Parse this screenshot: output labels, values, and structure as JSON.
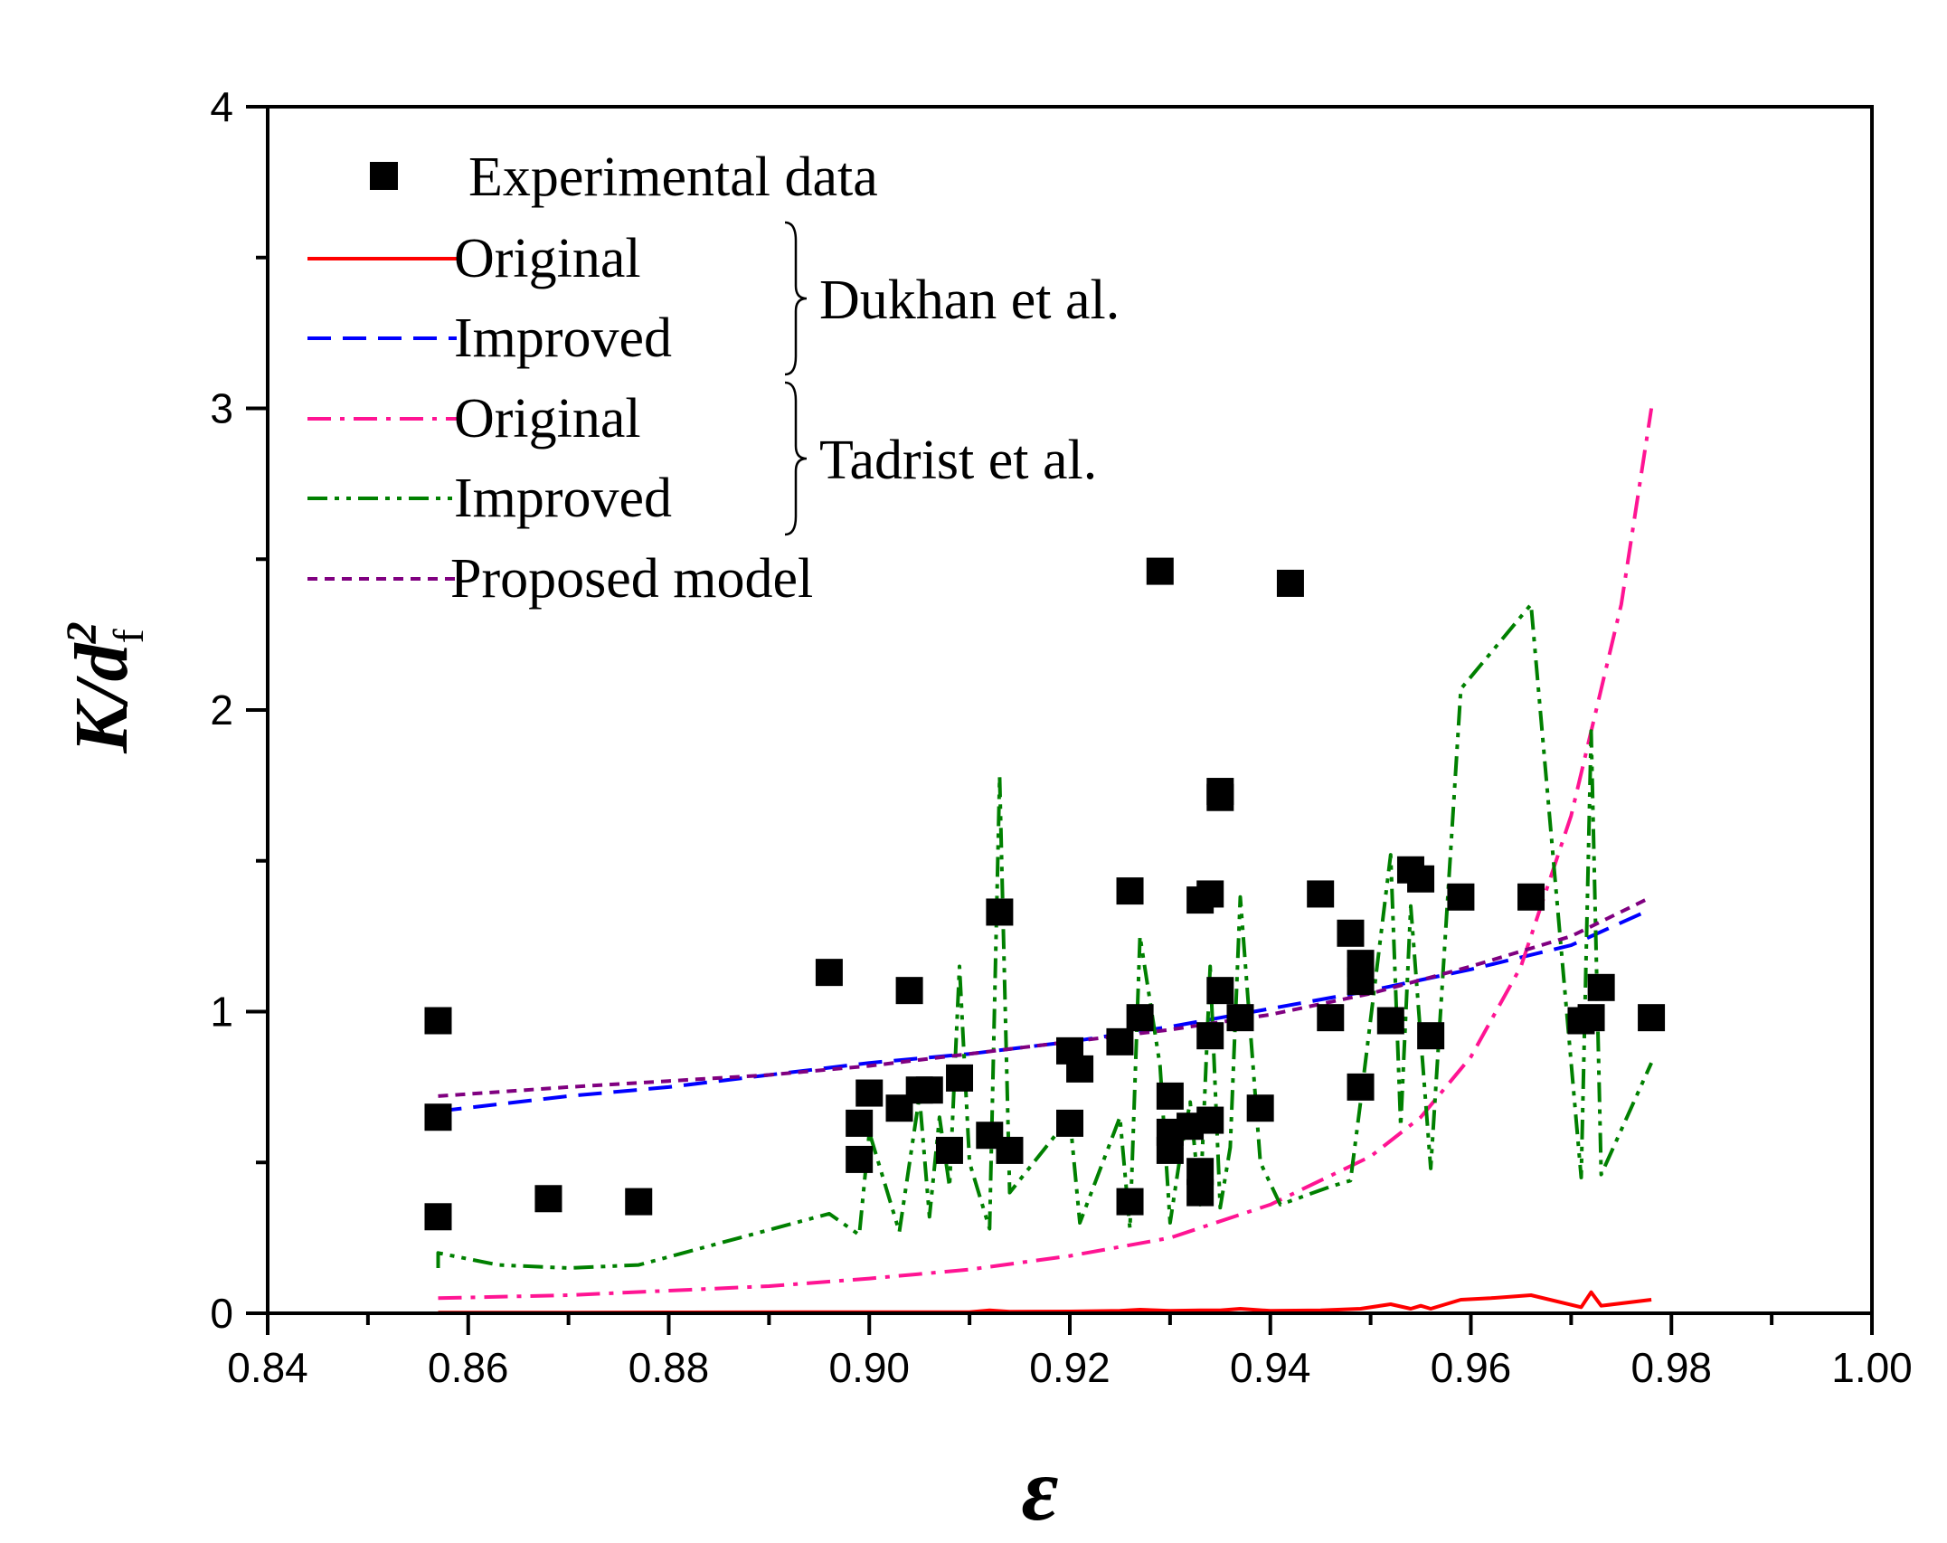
{
  "chart_data": {
    "type": "scatter",
    "title": "",
    "xlabel": "ε",
    "ylabel": {
      "main": "K/d",
      "sup": "2",
      "sub": "f"
    },
    "xlim": [
      0.84,
      1.0
    ],
    "ylim": [
      0,
      4
    ],
    "xticks": [
      "0.84",
      "0.86",
      "0.88",
      "0.90",
      "0.92",
      "0.94",
      "0.96",
      "0.98",
      "1.00"
    ],
    "yticks": [
      "0",
      "1",
      "2",
      "3",
      "4"
    ],
    "grid": false,
    "legend": {
      "placement": "top-left",
      "items": [
        {
          "label": "Experimental data",
          "style": "square",
          "color": "#000000"
        },
        {
          "label": "Original",
          "style": "solid",
          "color": "#ff0000"
        },
        {
          "label": "Improved",
          "style": "dash",
          "color": "#0000ff"
        },
        {
          "label": "Original",
          "style": "dashdot",
          "color": "#ff1493"
        },
        {
          "label": "Improved",
          "style": "dashdotdot",
          "color": "#008000"
        },
        {
          "label": "Proposed model",
          "style": "shortdash",
          "color": "#800080"
        }
      ],
      "groups": [
        {
          "label": "Dukhan et al.",
          "items": [
            1,
            2
          ]
        },
        {
          "label": "Tadrist et al.",
          "items": [
            3,
            4
          ]
        }
      ]
    },
    "series": [
      {
        "name": "Experimental data",
        "style": "square",
        "color": "#000000",
        "points": [
          [
            0.857,
            0.97
          ],
          [
            0.857,
            0.65
          ],
          [
            0.857,
            0.32
          ],
          [
            0.868,
            0.38
          ],
          [
            0.877,
            0.37
          ],
          [
            0.896,
            1.13
          ],
          [
            0.899,
            0.63
          ],
          [
            0.899,
            0.51
          ],
          [
            0.9,
            0.73
          ],
          [
            0.903,
            0.68
          ],
          [
            0.904,
            1.07
          ],
          [
            0.905,
            0.74
          ],
          [
            0.906,
            0.74
          ],
          [
            0.908,
            0.54
          ],
          [
            0.909,
            0.78
          ],
          [
            0.912,
            0.59
          ],
          [
            0.913,
            1.33
          ],
          [
            0.914,
            0.54
          ],
          [
            0.92,
            0.87
          ],
          [
            0.92,
            0.63
          ],
          [
            0.921,
            0.81
          ],
          [
            0.925,
            0.9
          ],
          [
            0.926,
            1.4
          ],
          [
            0.926,
            0.37
          ],
          [
            0.927,
            0.98
          ],
          [
            0.929,
            2.46
          ],
          [
            0.93,
            0.72
          ],
          [
            0.93,
            0.6
          ],
          [
            0.93,
            0.54
          ],
          [
            0.932,
            0.62
          ],
          [
            0.933,
            1.37
          ],
          [
            0.933,
            0.47
          ],
          [
            0.933,
            0.4
          ],
          [
            0.934,
            1.39
          ],
          [
            0.934,
            0.92
          ],
          [
            0.934,
            0.64
          ],
          [
            0.935,
            1.73
          ],
          [
            0.935,
            1.71
          ],
          [
            0.935,
            1.07
          ],
          [
            0.937,
            0.98
          ],
          [
            0.939,
            0.68
          ],
          [
            0.942,
            2.42
          ],
          [
            0.945,
            1.39
          ],
          [
            0.946,
            0.98
          ],
          [
            0.948,
            1.26
          ],
          [
            0.949,
            1.16
          ],
          [
            0.949,
            1.1
          ],
          [
            0.949,
            0.75
          ],
          [
            0.952,
            0.97
          ],
          [
            0.954,
            1.47
          ],
          [
            0.955,
            1.44
          ],
          [
            0.956,
            0.92
          ],
          [
            0.959,
            1.38
          ],
          [
            0.966,
            1.38
          ],
          [
            0.971,
            0.97
          ],
          [
            0.972,
            0.98
          ],
          [
            0.973,
            1.08
          ],
          [
            0.978,
            0.98
          ]
        ]
      },
      {
        "name": "Dukhan et al. Original",
        "style": "solid",
        "color": "#ff0000",
        "points": [
          [
            0.857,
            0.002
          ],
          [
            0.87,
            0.002
          ],
          [
            0.88,
            0.003
          ],
          [
            0.9,
            0.004
          ],
          [
            0.91,
            0.004
          ],
          [
            0.912,
            0.01
          ],
          [
            0.914,
            0.005
          ],
          [
            0.92,
            0.006
          ],
          [
            0.925,
            0.008
          ],
          [
            0.927,
            0.012
          ],
          [
            0.93,
            0.008
          ],
          [
            0.933,
            0.01
          ],
          [
            0.935,
            0.01
          ],
          [
            0.937,
            0.015
          ],
          [
            0.94,
            0.008
          ],
          [
            0.945,
            0.01
          ],
          [
            0.949,
            0.015
          ],
          [
            0.952,
            0.03
          ],
          [
            0.954,
            0.015
          ],
          [
            0.955,
            0.025
          ],
          [
            0.956,
            0.015
          ],
          [
            0.959,
            0.045
          ],
          [
            0.962,
            0.05
          ],
          [
            0.966,
            0.06
          ],
          [
            0.971,
            0.02
          ],
          [
            0.972,
            0.07
          ],
          [
            0.973,
            0.025
          ],
          [
            0.978,
            0.045
          ]
        ]
      },
      {
        "name": "Dukhan et al. Improved",
        "style": "dash",
        "color": "#0000ff",
        "points": [
          [
            0.857,
            0.67
          ],
          [
            0.87,
            0.72
          ],
          [
            0.88,
            0.75
          ],
          [
            0.89,
            0.79
          ],
          [
            0.9,
            0.83
          ],
          [
            0.91,
            0.86
          ],
          [
            0.92,
            0.9
          ],
          [
            0.93,
            0.95
          ],
          [
            0.94,
            1.01
          ],
          [
            0.95,
            1.07
          ],
          [
            0.96,
            1.14
          ],
          [
            0.97,
            1.22
          ],
          [
            0.978,
            1.34
          ]
        ]
      },
      {
        "name": "Tadrist et al. Original",
        "style": "dashdot",
        "color": "#ff1493",
        "points": [
          [
            0.857,
            0.05
          ],
          [
            0.87,
            0.06
          ],
          [
            0.88,
            0.075
          ],
          [
            0.89,
            0.09
          ],
          [
            0.9,
            0.115
          ],
          [
            0.91,
            0.145
          ],
          [
            0.92,
            0.19
          ],
          [
            0.93,
            0.25
          ],
          [
            0.94,
            0.36
          ],
          [
            0.95,
            0.52
          ],
          [
            0.955,
            0.65
          ],
          [
            0.96,
            0.85
          ],
          [
            0.965,
            1.15
          ],
          [
            0.97,
            1.65
          ],
          [
            0.975,
            2.35
          ],
          [
            0.978,
            3.0
          ]
        ]
      },
      {
        "name": "Tadrist et al. Improved",
        "style": "dashdotdot",
        "color": "#008000",
        "points": [
          [
            0.857,
            0.15
          ],
          [
            0.857,
            0.2
          ],
          [
            0.863,
            0.16
          ],
          [
            0.87,
            0.15
          ],
          [
            0.877,
            0.16
          ],
          [
            0.896,
            0.33
          ],
          [
            0.899,
            0.26
          ],
          [
            0.9,
            0.6
          ],
          [
            0.903,
            0.27
          ],
          [
            0.905,
            0.72
          ],
          [
            0.906,
            0.32
          ],
          [
            0.907,
            0.65
          ],
          [
            0.908,
            0.42
          ],
          [
            0.909,
            1.15
          ],
          [
            0.91,
            0.5
          ],
          [
            0.912,
            0.28
          ],
          [
            0.913,
            1.78
          ],
          [
            0.914,
            0.4
          ],
          [
            0.92,
            0.65
          ],
          [
            0.921,
            0.3
          ],
          [
            0.925,
            0.65
          ],
          [
            0.926,
            0.28
          ],
          [
            0.927,
            1.25
          ],
          [
            0.929,
            0.82
          ],
          [
            0.93,
            0.3
          ],
          [
            0.931,
            0.52
          ],
          [
            0.932,
            0.7
          ],
          [
            0.933,
            0.36
          ],
          [
            0.934,
            1.15
          ],
          [
            0.935,
            0.35
          ],
          [
            0.936,
            0.55
          ],
          [
            0.937,
            1.38
          ],
          [
            0.939,
            0.5
          ],
          [
            0.941,
            0.36
          ],
          [
            0.946,
            0.42
          ],
          [
            0.948,
            0.44
          ],
          [
            0.949,
            0.7
          ],
          [
            0.952,
            1.52
          ],
          [
            0.953,
            0.62
          ],
          [
            0.954,
            1.35
          ],
          [
            0.956,
            0.48
          ],
          [
            0.959,
            2.07
          ],
          [
            0.966,
            2.35
          ],
          [
            0.971,
            0.45
          ],
          [
            0.972,
            1.93
          ],
          [
            0.973,
            0.46
          ],
          [
            0.978,
            0.83
          ]
        ]
      },
      {
        "name": "Proposed model",
        "style": "shortdash",
        "color": "#800080",
        "points": [
          [
            0.857,
            0.72
          ],
          [
            0.87,
            0.75
          ],
          [
            0.88,
            0.77
          ],
          [
            0.89,
            0.79
          ],
          [
            0.9,
            0.82
          ],
          [
            0.91,
            0.86
          ],
          [
            0.92,
            0.9
          ],
          [
            0.93,
            0.94
          ],
          [
            0.94,
            0.99
          ],
          [
            0.95,
            1.06
          ],
          [
            0.96,
            1.15
          ],
          [
            0.97,
            1.25
          ],
          [
            0.978,
            1.38
          ]
        ]
      }
    ]
  }
}
